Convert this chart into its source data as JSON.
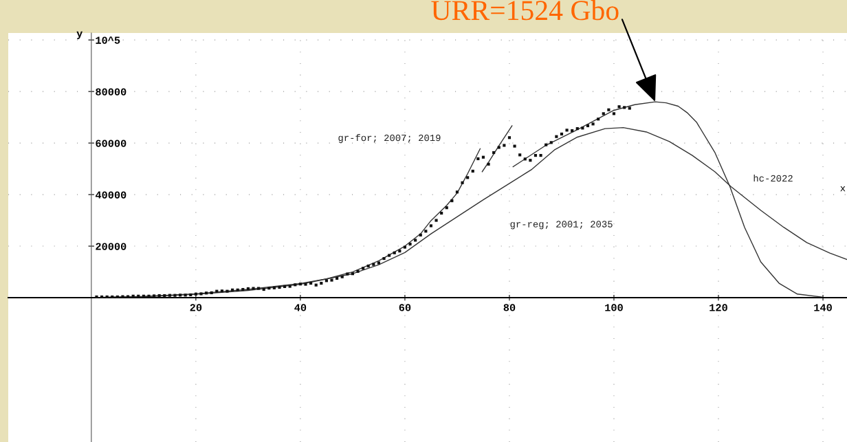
{
  "chart_data": {
    "type": "line",
    "title": "URR=1524 Gbo",
    "xlabel": "x",
    "ylabel": "y",
    "xlim": [
      -15.9,
      144.6
    ],
    "ylim": [
      -56000,
      102700
    ],
    "xticks": [
      20,
      40,
      60,
      80,
      100,
      120,
      140
    ],
    "yticks": [
      20000,
      40000,
      60000,
      80000,
      {
        "value": 100000,
        "label": "10^5"
      }
    ],
    "grid": true,
    "series": [
      {
        "type": "scatter",
        "marker": "square",
        "color": "#111111",
        "x": [
          1,
          2,
          3,
          4,
          5,
          6,
          7,
          8,
          9,
          10,
          11,
          12,
          13,
          14,
          15,
          16,
          17,
          18,
          19,
          20,
          21,
          22,
          23,
          24,
          25,
          26,
          27,
          28,
          29,
          30,
          31,
          32,
          33,
          34,
          35,
          36,
          37,
          38,
          39,
          40,
          41,
          42,
          43,
          44,
          45,
          46,
          47,
          48,
          49,
          50,
          51,
          52,
          53,
          54,
          55,
          56,
          57,
          58,
          59,
          60,
          61,
          62,
          63,
          64,
          65,
          66,
          67,
          68,
          69,
          70,
          71,
          72,
          73,
          74,
          75,
          76,
          77,
          78,
          79,
          80,
          81,
          82,
          83,
          84,
          85,
          86,
          87,
          88,
          89,
          90,
          91,
          92,
          93,
          94,
          95,
          96,
          97,
          98,
          99,
          100,
          101,
          102,
          103
        ],
        "values": [
          300,
          300,
          300,
          300,
          300,
          400,
          400,
          600,
          600,
          600,
          600,
          700,
          800,
          800,
          900,
          900,
          1000,
          1000,
          1100,
          1400,
          1500,
          1800,
          1900,
          2500,
          2600,
          2500,
          3000,
          3000,
          3200,
          3500,
          3600,
          3600,
          3200,
          3700,
          3800,
          4000,
          4300,
          4400,
          5000,
          5300,
          5200,
          5600,
          4900,
          5600,
          6600,
          6800,
          7500,
          8100,
          9200,
          9300,
          10200,
          11400,
          12300,
          12900,
          13500,
          15200,
          16400,
          17400,
          18100,
          19600,
          20800,
          22300,
          24300,
          25800,
          27900,
          30000,
          32800,
          34900,
          37600,
          41000,
          44600,
          46600,
          49100,
          53900,
          54500,
          51800,
          56300,
          58300,
          59100,
          62100,
          58800,
          55400,
          53800,
          53300,
          55200,
          55200,
          59300,
          60200,
          62500,
          63500,
          65000,
          64800,
          65600,
          65800,
          66700,
          67400,
          69300,
          71400,
          72900,
          71400,
          74100,
          73800,
          73500
        ]
      },
      {
        "color": "#333333",
        "x": [
          0,
          10,
          20,
          30,
          40,
          45,
          50,
          55,
          60,
          63,
          65,
          68,
          70,
          72,
          74.4
        ],
        "values": [
          0,
          500,
          1500,
          3200,
          5500,
          7300,
          10000,
          14300,
          20000,
          24800,
          29900,
          35800,
          40600,
          48100,
          57800
        ]
      },
      {
        "color": "#333333",
        "x": [
          74.8,
          76,
          78,
          80.5
        ],
        "values": [
          48900,
          52500,
          59000,
          66700
        ]
      },
      {
        "color": "#333333",
        "x": [
          80.7,
          86.8,
          93,
          100,
          104,
          107.9,
          110,
          112.3,
          114,
          115.8,
          119.3,
          122.2,
          125,
          128.1,
          131.6,
          135.1,
          140
        ],
        "values": [
          50800,
          58900,
          65200,
          72700,
          74900,
          76000,
          75600,
          74300,
          71800,
          68100,
          56400,
          43100,
          27300,
          13900,
          5600,
          1400,
          200
        ]
      },
      {
        "color": "#333333",
        "x": [
          0,
          10,
          20,
          30,
          40,
          50,
          55,
          60,
          65,
          70,
          75,
          80,
          84.3,
          88.6,
          93,
          98.3,
          101.8,
          106.2,
          110.6,
          115,
          119.3,
          122.4,
          128.1,
          132.5,
          136.9,
          141.3,
          144.6
        ],
        "values": [
          0,
          400,
          1300,
          2800,
          5200,
          9300,
          12800,
          17500,
          24800,
          31400,
          38000,
          44300,
          49800,
          57300,
          62300,
          65600,
          66000,
          64300,
          60600,
          55200,
          48900,
          43100,
          33900,
          27300,
          21400,
          17300,
          14800
        ]
      }
    ],
    "annotations": [
      "gr-for; 2007; 2019",
      "gr-reg; 2001; 2035",
      "hc-2022"
    ]
  }
}
